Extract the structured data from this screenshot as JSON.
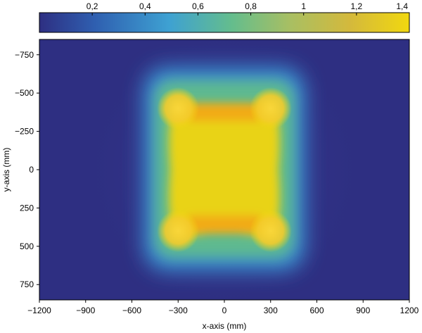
{
  "chart_data": {
    "type": "heatmap",
    "xlabel": "x-axis (mm)",
    "ylabel": "y-axis (mm)",
    "xlim": [
      -1200,
      1200
    ],
    "ylim": [
      850,
      -850
    ],
    "x_ticks": [
      -1200,
      -900,
      -600,
      -300,
      0,
      300,
      600,
      900,
      1200
    ],
    "x_tick_labels": [
      "−1200",
      "−900",
      "−600",
      "−300",
      "0",
      "300",
      "600",
      "900",
      "1200"
    ],
    "y_ticks": [
      -750,
      -500,
      -250,
      0,
      250,
      500,
      750
    ],
    "y_tick_labels": [
      "−750",
      "−500",
      "−250",
      "0",
      "250",
      "500",
      "750"
    ],
    "colorbar": {
      "location": "top",
      "range": [
        0,
        1.4
      ],
      "ticks": [
        0.2,
        0.4,
        0.6,
        0.8,
        1,
        1.2,
        1.4
      ],
      "tick_labels": [
        "0,2",
        "0,4",
        "0,6",
        "0,8",
        "1",
        "1,2",
        "1,4"
      ],
      "colors": [
        "#2e2f82",
        "#2f5fb0",
        "#3ea1d2",
        "#64bd8d",
        "#a9bf62",
        "#d4b93c",
        "#f1d80f"
      ]
    },
    "features": {
      "plateau": {
        "x_range": [
          -450,
          450
        ],
        "y_range": [
          -560,
          560
        ],
        "value": 1.3
      },
      "hot_spots": [
        {
          "x": -300,
          "y": -400,
          "value": 1.35
        },
        {
          "x": 300,
          "y": -400,
          "value": 1.35
        },
        {
          "x": -300,
          "y": 400,
          "value": 1.35
        },
        {
          "x": 300,
          "y": 400,
          "value": 1.35
        }
      ],
      "background_value": 0.02
    }
  }
}
